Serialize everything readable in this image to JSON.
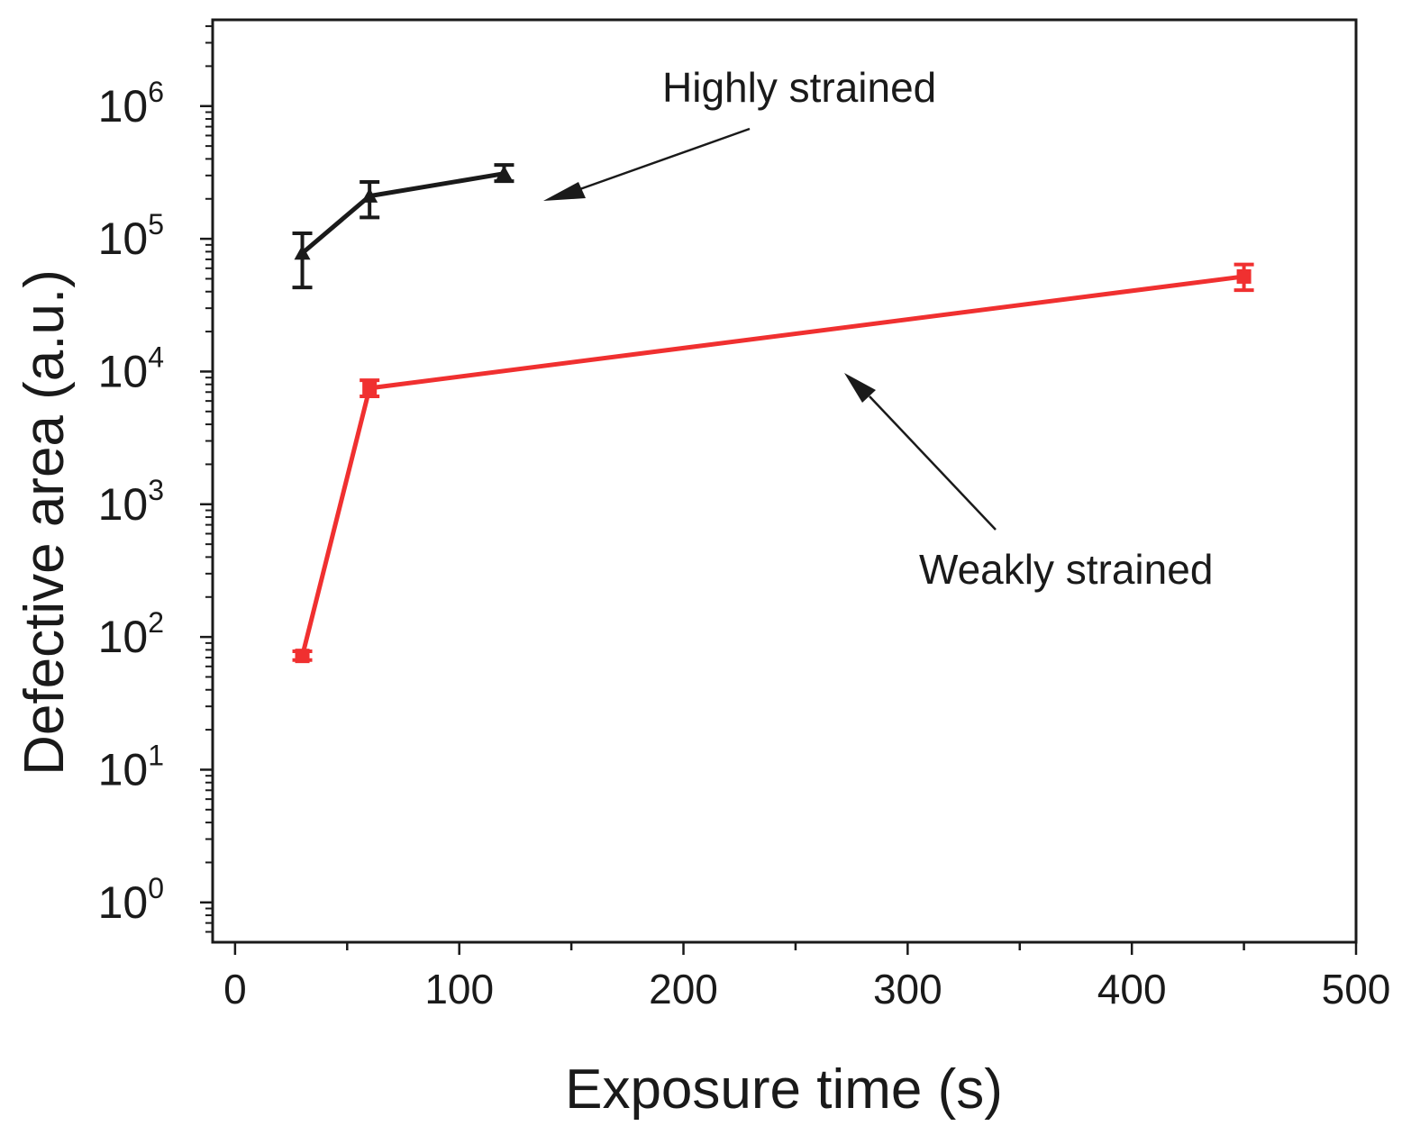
{
  "chart_data": {
    "type": "line",
    "title": "",
    "xlabel": "Exposure time (s)",
    "ylabel": "Defective area (a.u.)",
    "xlim": [
      -10,
      500
    ],
    "ylim_log10": [
      -0.3,
      6.65
    ],
    "yscale": "log",
    "x_ticks": [
      0,
      100,
      200,
      300,
      400,
      500
    ],
    "x_tick_labels": [
      "0",
      "100",
      "200",
      "300",
      "400",
      "500"
    ],
    "y_ticks": [
      {
        "base": "10",
        "exp": "0",
        "value": 1
      },
      {
        "base": "10",
        "exp": "1",
        "value": 10
      },
      {
        "base": "10",
        "exp": "2",
        "value": 100
      },
      {
        "base": "10",
        "exp": "3",
        "value": 1000
      },
      {
        "base": "10",
        "exp": "4",
        "value": 10000
      },
      {
        "base": "10",
        "exp": "5",
        "value": 100000
      },
      {
        "base": "10",
        "exp": "6",
        "value": 1000000
      }
    ],
    "series": [
      {
        "name": "Highly strained",
        "color": "#1a1a1a",
        "marker": "triangle",
        "points": [
          {
            "x": 30,
            "y": 78000,
            "err_low": 43000,
            "err_high": 110000
          },
          {
            "x": 60,
            "y": 210000,
            "err_low": 145000,
            "err_high": 268000
          },
          {
            "x": 120,
            "y": 310000,
            "err_low": 272000,
            "err_high": 360000
          }
        ]
      },
      {
        "name": "Weakly strained",
        "color": "#f03030",
        "marker": "square",
        "points": [
          {
            "x": 30,
            "y": 72,
            "err_low": 67,
            "err_high": 78
          },
          {
            "x": 60,
            "y": 7500,
            "err_low": 6500,
            "err_high": 8600
          },
          {
            "x": 450,
            "y": 52000,
            "err_low": 41000,
            "err_high": 64000
          }
        ]
      }
    ],
    "annotations": [
      {
        "text": "Highly strained",
        "series": "Highly strained"
      },
      {
        "text": "Weakly strained",
        "series": "Weakly strained"
      }
    ],
    "grid": false
  }
}
